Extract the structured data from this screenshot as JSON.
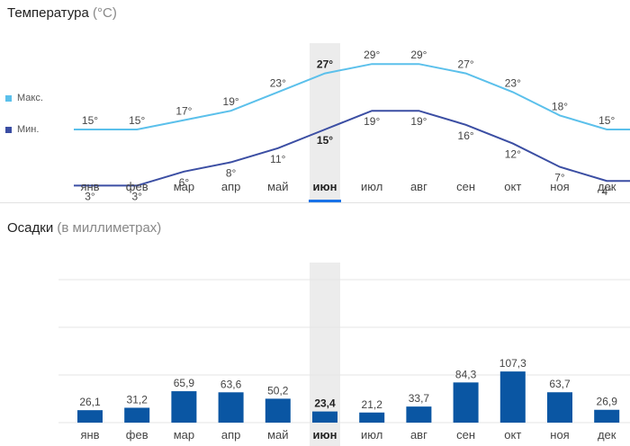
{
  "temperature_section": {
    "title": "Температура",
    "unit": "(°C)"
  },
  "precip_section": {
    "title": "Осадки",
    "unit": "(в миллиметрах)"
  },
  "legend": {
    "max_label": "Макс.",
    "min_label": "Мин."
  },
  "colors": {
    "max_line": "#5bc0eb",
    "min_line": "#3b4ea3",
    "bar": "#0a56a3",
    "highlight_bg": "#ececec",
    "highlight_underline": "#1a73e8"
  },
  "selected_month_index": 5,
  "chart_data": [
    {
      "type": "line",
      "categories": [
        "янв",
        "фев",
        "мар",
        "апр",
        "май",
        "июн",
        "июл",
        "авг",
        "сен",
        "окт",
        "ноя",
        "дек"
      ],
      "series": [
        {
          "name": "Макс.",
          "values": [
            15,
            15,
            17,
            19,
            23,
            27,
            29,
            29,
            27,
            23,
            18,
            15
          ],
          "labels": [
            "15°",
            "15°",
            "17°",
            "19°",
            "23°",
            "27°",
            "29°",
            "29°",
            "27°",
            "23°",
            "18°",
            "15°"
          ]
        },
        {
          "name": "Мин.",
          "values": [
            3,
            3,
            6,
            8,
            11,
            15,
            19,
            19,
            16,
            12,
            7,
            4
          ],
          "labels": [
            "3°",
            "3°",
            "6°",
            "8°",
            "11°",
            "15°",
            "19°",
            "19°",
            "16°",
            "12°",
            "7°",
            "4°"
          ]
        }
      ],
      "ylim": [
        0,
        30
      ],
      "legend": "left"
    },
    {
      "type": "bar",
      "categories": [
        "янв",
        "фев",
        "мар",
        "апр",
        "май",
        "июн",
        "июл",
        "авг",
        "сен",
        "окт",
        "ноя",
        "дек"
      ],
      "values": [
        26.1,
        31.2,
        65.9,
        63.6,
        50.2,
        23.4,
        21.2,
        33.7,
        84.3,
        107.3,
        63.7,
        26.9
      ],
      "labels": [
        "26,1",
        "31,2",
        "65,9",
        "63,6",
        "50,2",
        "23,4",
        "21,2",
        "33,7",
        "84,3",
        "107,3",
        "63,7",
        "26,9"
      ],
      "ylim": [
        0,
        300
      ],
      "grid": true
    }
  ]
}
